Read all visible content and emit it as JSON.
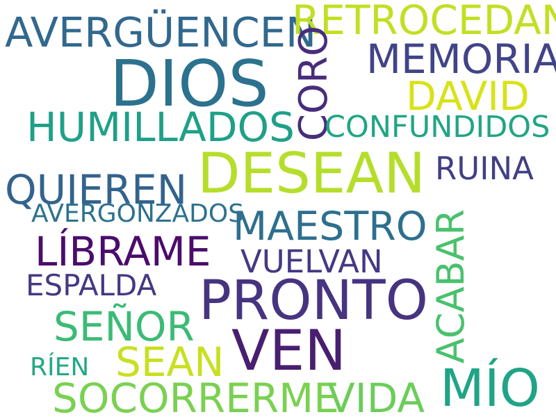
{
  "words": [
    {
      "text": "DIOS",
      "color": "#2c728e"
    },
    {
      "text": "AVERGÜENCEN",
      "color": "#31688e"
    },
    {
      "text": "RETROCEDAN",
      "color": "#c2df23"
    },
    {
      "text": "MEMORIA",
      "color": "#414487"
    },
    {
      "text": "CORO",
      "color": "#472d7b"
    },
    {
      "text": "DAVID",
      "color": "#d8e219"
    },
    {
      "text": "HUMILLADOS",
      "color": "#1fa088"
    },
    {
      "text": "CONFUNDIDOS",
      "color": "#21a585"
    },
    {
      "text": "DESEAN",
      "color": "#b5de2b"
    },
    {
      "text": "RUINA",
      "color": "#423f85"
    },
    {
      "text": "QUIEREN",
      "color": "#33638d"
    },
    {
      "text": "AVERGONZADOS",
      "color": "#2d718e"
    },
    {
      "text": "MAESTRO",
      "color": "#2e6f8e"
    },
    {
      "text": "LÍBRAME",
      "color": "#4b0c6b"
    },
    {
      "text": "ACABAR",
      "color": "#4ac16d"
    },
    {
      "text": "VUELVAN",
      "color": "#443983"
    },
    {
      "text": "ESPALDA",
      "color": "#453882"
    },
    {
      "text": "PRONTO",
      "color": "#463480"
    },
    {
      "text": "SEÑOR",
      "color": "#3bbb75"
    },
    {
      "text": "VEN",
      "color": "#481f70"
    },
    {
      "text": "SEAN",
      "color": "#c8e020"
    },
    {
      "text": "RÍEN",
      "color": "#22a884"
    },
    {
      "text": "MÍO",
      "color": "#20a486"
    },
    {
      "text": "SOCORRERME",
      "color": "#7ad151"
    },
    {
      "text": "VIDA",
      "color": "#6ccd5a"
    }
  ]
}
